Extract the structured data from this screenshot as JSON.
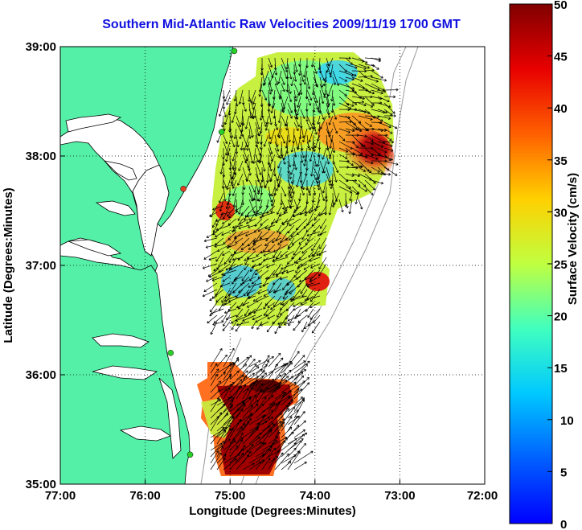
{
  "title": "Southern Mid-Atlantic Raw Velocities 2009/11/19 1700 GMT",
  "axes": {
    "xlabel": "Longitude (Degrees:Minutes)",
    "ylabel": "Latitude (Degrees:Minutes)",
    "xticks": [
      "77:00",
      "76:00",
      "75:00",
      "74:00",
      "73:00",
      "72:00"
    ],
    "yticks": [
      "39:00",
      "38:00",
      "37:00",
      "36:00",
      "35:00"
    ],
    "xlim": [
      -77,
      -72
    ],
    "ylim": [
      35,
      39
    ],
    "grid": "dotted"
  },
  "colorbar": {
    "label": "Surface Velocity (cm/s)",
    "ticks": [
      "50",
      "45",
      "40",
      "35",
      "30",
      "25",
      "20",
      "15",
      "10",
      "5",
      "0"
    ],
    "range": [
      0,
      50
    ],
    "colormap": "jet"
  },
  "colors": {
    "title": "#1010e0",
    "land": "#55f0a8",
    "water": "#ffffff",
    "bathymetry": "#999999",
    "station": "#2ad02a",
    "station_alt": "#e04020"
  },
  "stations": [
    {
      "lon": -74.95,
      "lat": 38.96,
      "status": "green"
    },
    {
      "lon": -75.1,
      "lat": 38.22,
      "status": "green"
    },
    {
      "lon": -75.55,
      "lat": 37.7,
      "status": "red"
    },
    {
      "lon": -75.7,
      "lat": 36.2,
      "status": "green"
    },
    {
      "lon": -75.47,
      "lat": 35.27,
      "status": "green"
    }
  ]
}
